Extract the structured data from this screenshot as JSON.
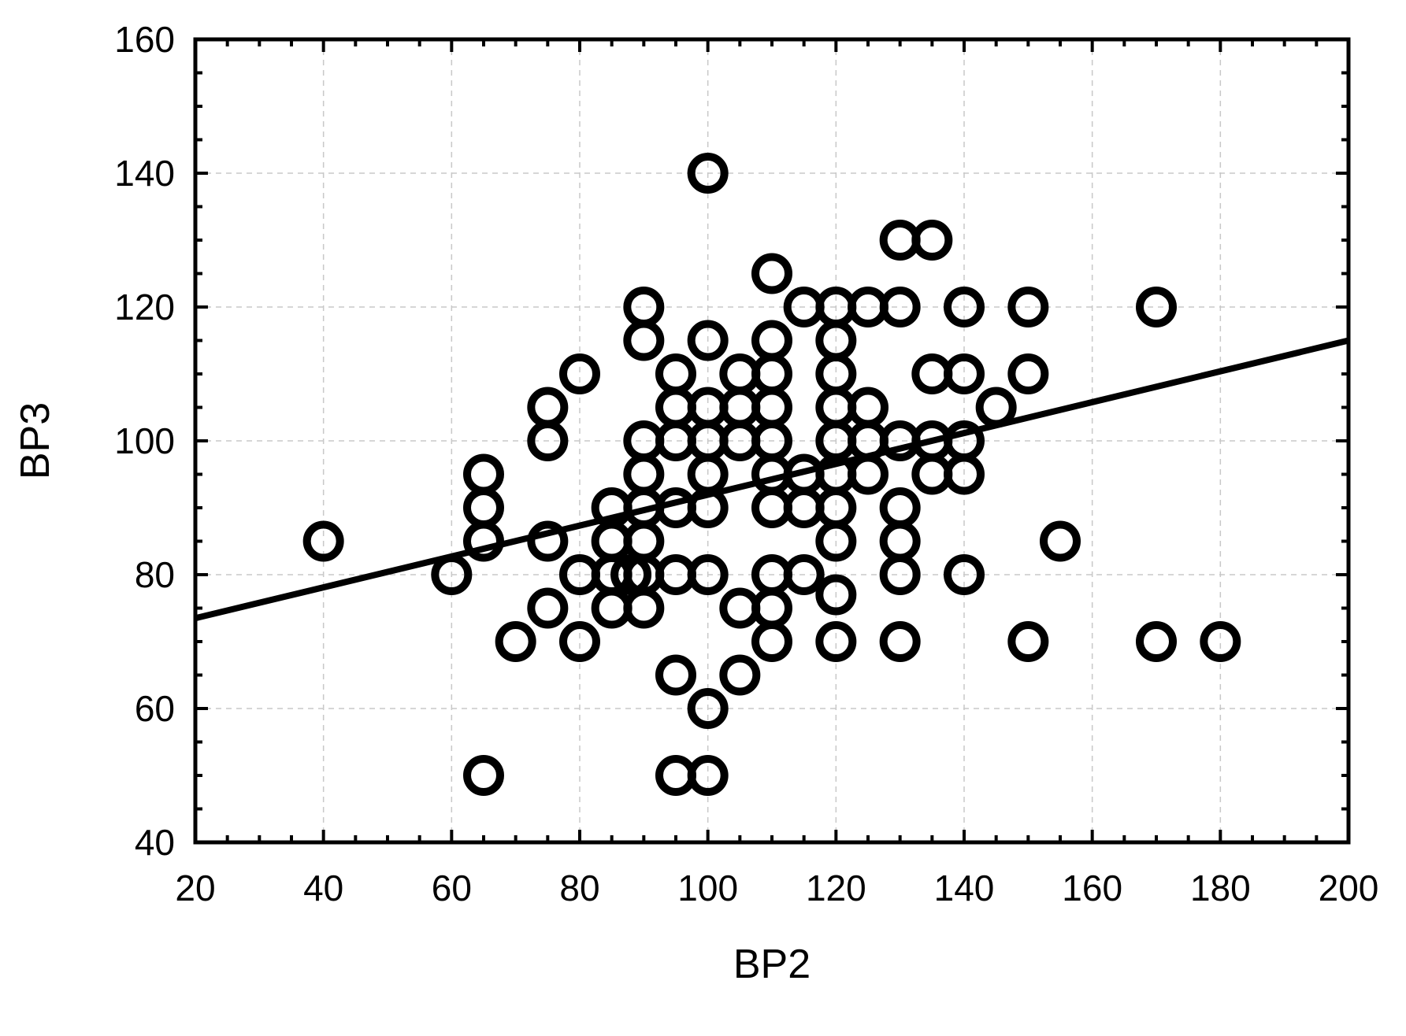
{
  "chart_data": {
    "type": "scatter",
    "xlabel": "BP2",
    "ylabel": "BP3",
    "xlim": [
      20,
      200
    ],
    "ylim": [
      40,
      160
    ],
    "x_ticks": [
      "20",
      "40",
      "60",
      "80",
      "100",
      "120",
      "140",
      "160",
      "180",
      "200"
    ],
    "y_ticks": [
      "40",
      "60",
      "80",
      "100",
      "120",
      "140",
      "160"
    ],
    "grid": true,
    "legend": "none",
    "marker": "open-circle",
    "points": [
      {
        "x": 40,
        "y": 85
      },
      {
        "x": 60,
        "y": 80
      },
      {
        "x": 65,
        "y": 50
      },
      {
        "x": 65,
        "y": 85
      },
      {
        "x": 65,
        "y": 90
      },
      {
        "x": 65,
        "y": 95
      },
      {
        "x": 70,
        "y": 70
      },
      {
        "x": 75,
        "y": 75
      },
      {
        "x": 75,
        "y": 85
      },
      {
        "x": 75,
        "y": 100
      },
      {
        "x": 75,
        "y": 105
      },
      {
        "x": 80,
        "y": 70
      },
      {
        "x": 80,
        "y": 80
      },
      {
        "x": 80,
        "y": 110
      },
      {
        "x": 85,
        "y": 75
      },
      {
        "x": 85,
        "y": 80
      },
      {
        "x": 85,
        "y": 85
      },
      {
        "x": 85,
        "y": 90
      },
      {
        "x": 88,
        "y": 80
      },
      {
        "x": 90,
        "y": 75
      },
      {
        "x": 90,
        "y": 80
      },
      {
        "x": 90,
        "y": 85
      },
      {
        "x": 90,
        "y": 90
      },
      {
        "x": 90,
        "y": 95
      },
      {
        "x": 90,
        "y": 100
      },
      {
        "x": 90,
        "y": 115
      },
      {
        "x": 90,
        "y": 120
      },
      {
        "x": 95,
        "y": 50
      },
      {
        "x": 95,
        "y": 65
      },
      {
        "x": 95,
        "y": 80
      },
      {
        "x": 95,
        "y": 90
      },
      {
        "x": 95,
        "y": 100
      },
      {
        "x": 95,
        "y": 105
      },
      {
        "x": 95,
        "y": 110
      },
      {
        "x": 100,
        "y": 50
      },
      {
        "x": 100,
        "y": 60
      },
      {
        "x": 100,
        "y": 80
      },
      {
        "x": 100,
        "y": 90
      },
      {
        "x": 100,
        "y": 95
      },
      {
        "x": 100,
        "y": 100
      },
      {
        "x": 100,
        "y": 105
      },
      {
        "x": 100,
        "y": 115
      },
      {
        "x": 100,
        "y": 140
      },
      {
        "x": 105,
        "y": 65
      },
      {
        "x": 105,
        "y": 75
      },
      {
        "x": 105,
        "y": 100
      },
      {
        "x": 105,
        "y": 105
      },
      {
        "x": 105,
        "y": 110
      },
      {
        "x": 110,
        "y": 70
      },
      {
        "x": 110,
        "y": 75
      },
      {
        "x": 110,
        "y": 80
      },
      {
        "x": 110,
        "y": 90
      },
      {
        "x": 110,
        "y": 95
      },
      {
        "x": 110,
        "y": 100
      },
      {
        "x": 110,
        "y": 105
      },
      {
        "x": 110,
        "y": 110
      },
      {
        "x": 110,
        "y": 115
      },
      {
        "x": 110,
        "y": 125
      },
      {
        "x": 115,
        "y": 80
      },
      {
        "x": 115,
        "y": 90
      },
      {
        "x": 115,
        "y": 95
      },
      {
        "x": 115,
        "y": 120
      },
      {
        "x": 120,
        "y": 70
      },
      {
        "x": 120,
        "y": 77
      },
      {
        "x": 120,
        "y": 85
      },
      {
        "x": 120,
        "y": 90
      },
      {
        "x": 120,
        "y": 95
      },
      {
        "x": 120,
        "y": 100
      },
      {
        "x": 120,
        "y": 105
      },
      {
        "x": 120,
        "y": 110
      },
      {
        "x": 120,
        "y": 115
      },
      {
        "x": 120,
        "y": 120
      },
      {
        "x": 125,
        "y": 95
      },
      {
        "x": 125,
        "y": 100
      },
      {
        "x": 125,
        "y": 105
      },
      {
        "x": 125,
        "y": 120
      },
      {
        "x": 130,
        "y": 70
      },
      {
        "x": 130,
        "y": 80
      },
      {
        "x": 130,
        "y": 85
      },
      {
        "x": 130,
        "y": 90
      },
      {
        "x": 130,
        "y": 100
      },
      {
        "x": 130,
        "y": 120
      },
      {
        "x": 130,
        "y": 130
      },
      {
        "x": 135,
        "y": 95
      },
      {
        "x": 135,
        "y": 100
      },
      {
        "x": 135,
        "y": 110
      },
      {
        "x": 135,
        "y": 130
      },
      {
        "x": 140,
        "y": 80
      },
      {
        "x": 140,
        "y": 95
      },
      {
        "x": 140,
        "y": 100
      },
      {
        "x": 140,
        "y": 110
      },
      {
        "x": 140,
        "y": 120
      },
      {
        "x": 145,
        "y": 105
      },
      {
        "x": 150,
        "y": 70
      },
      {
        "x": 150,
        "y": 110
      },
      {
        "x": 150,
        "y": 120
      },
      {
        "x": 155,
        "y": 85
      },
      {
        "x": 170,
        "y": 70
      },
      {
        "x": 170,
        "y": 120
      },
      {
        "x": 180,
        "y": 70
      }
    ],
    "fit_line": {
      "x": [
        20,
        200
      ],
      "y": [
        73.5,
        115
      ]
    }
  }
}
